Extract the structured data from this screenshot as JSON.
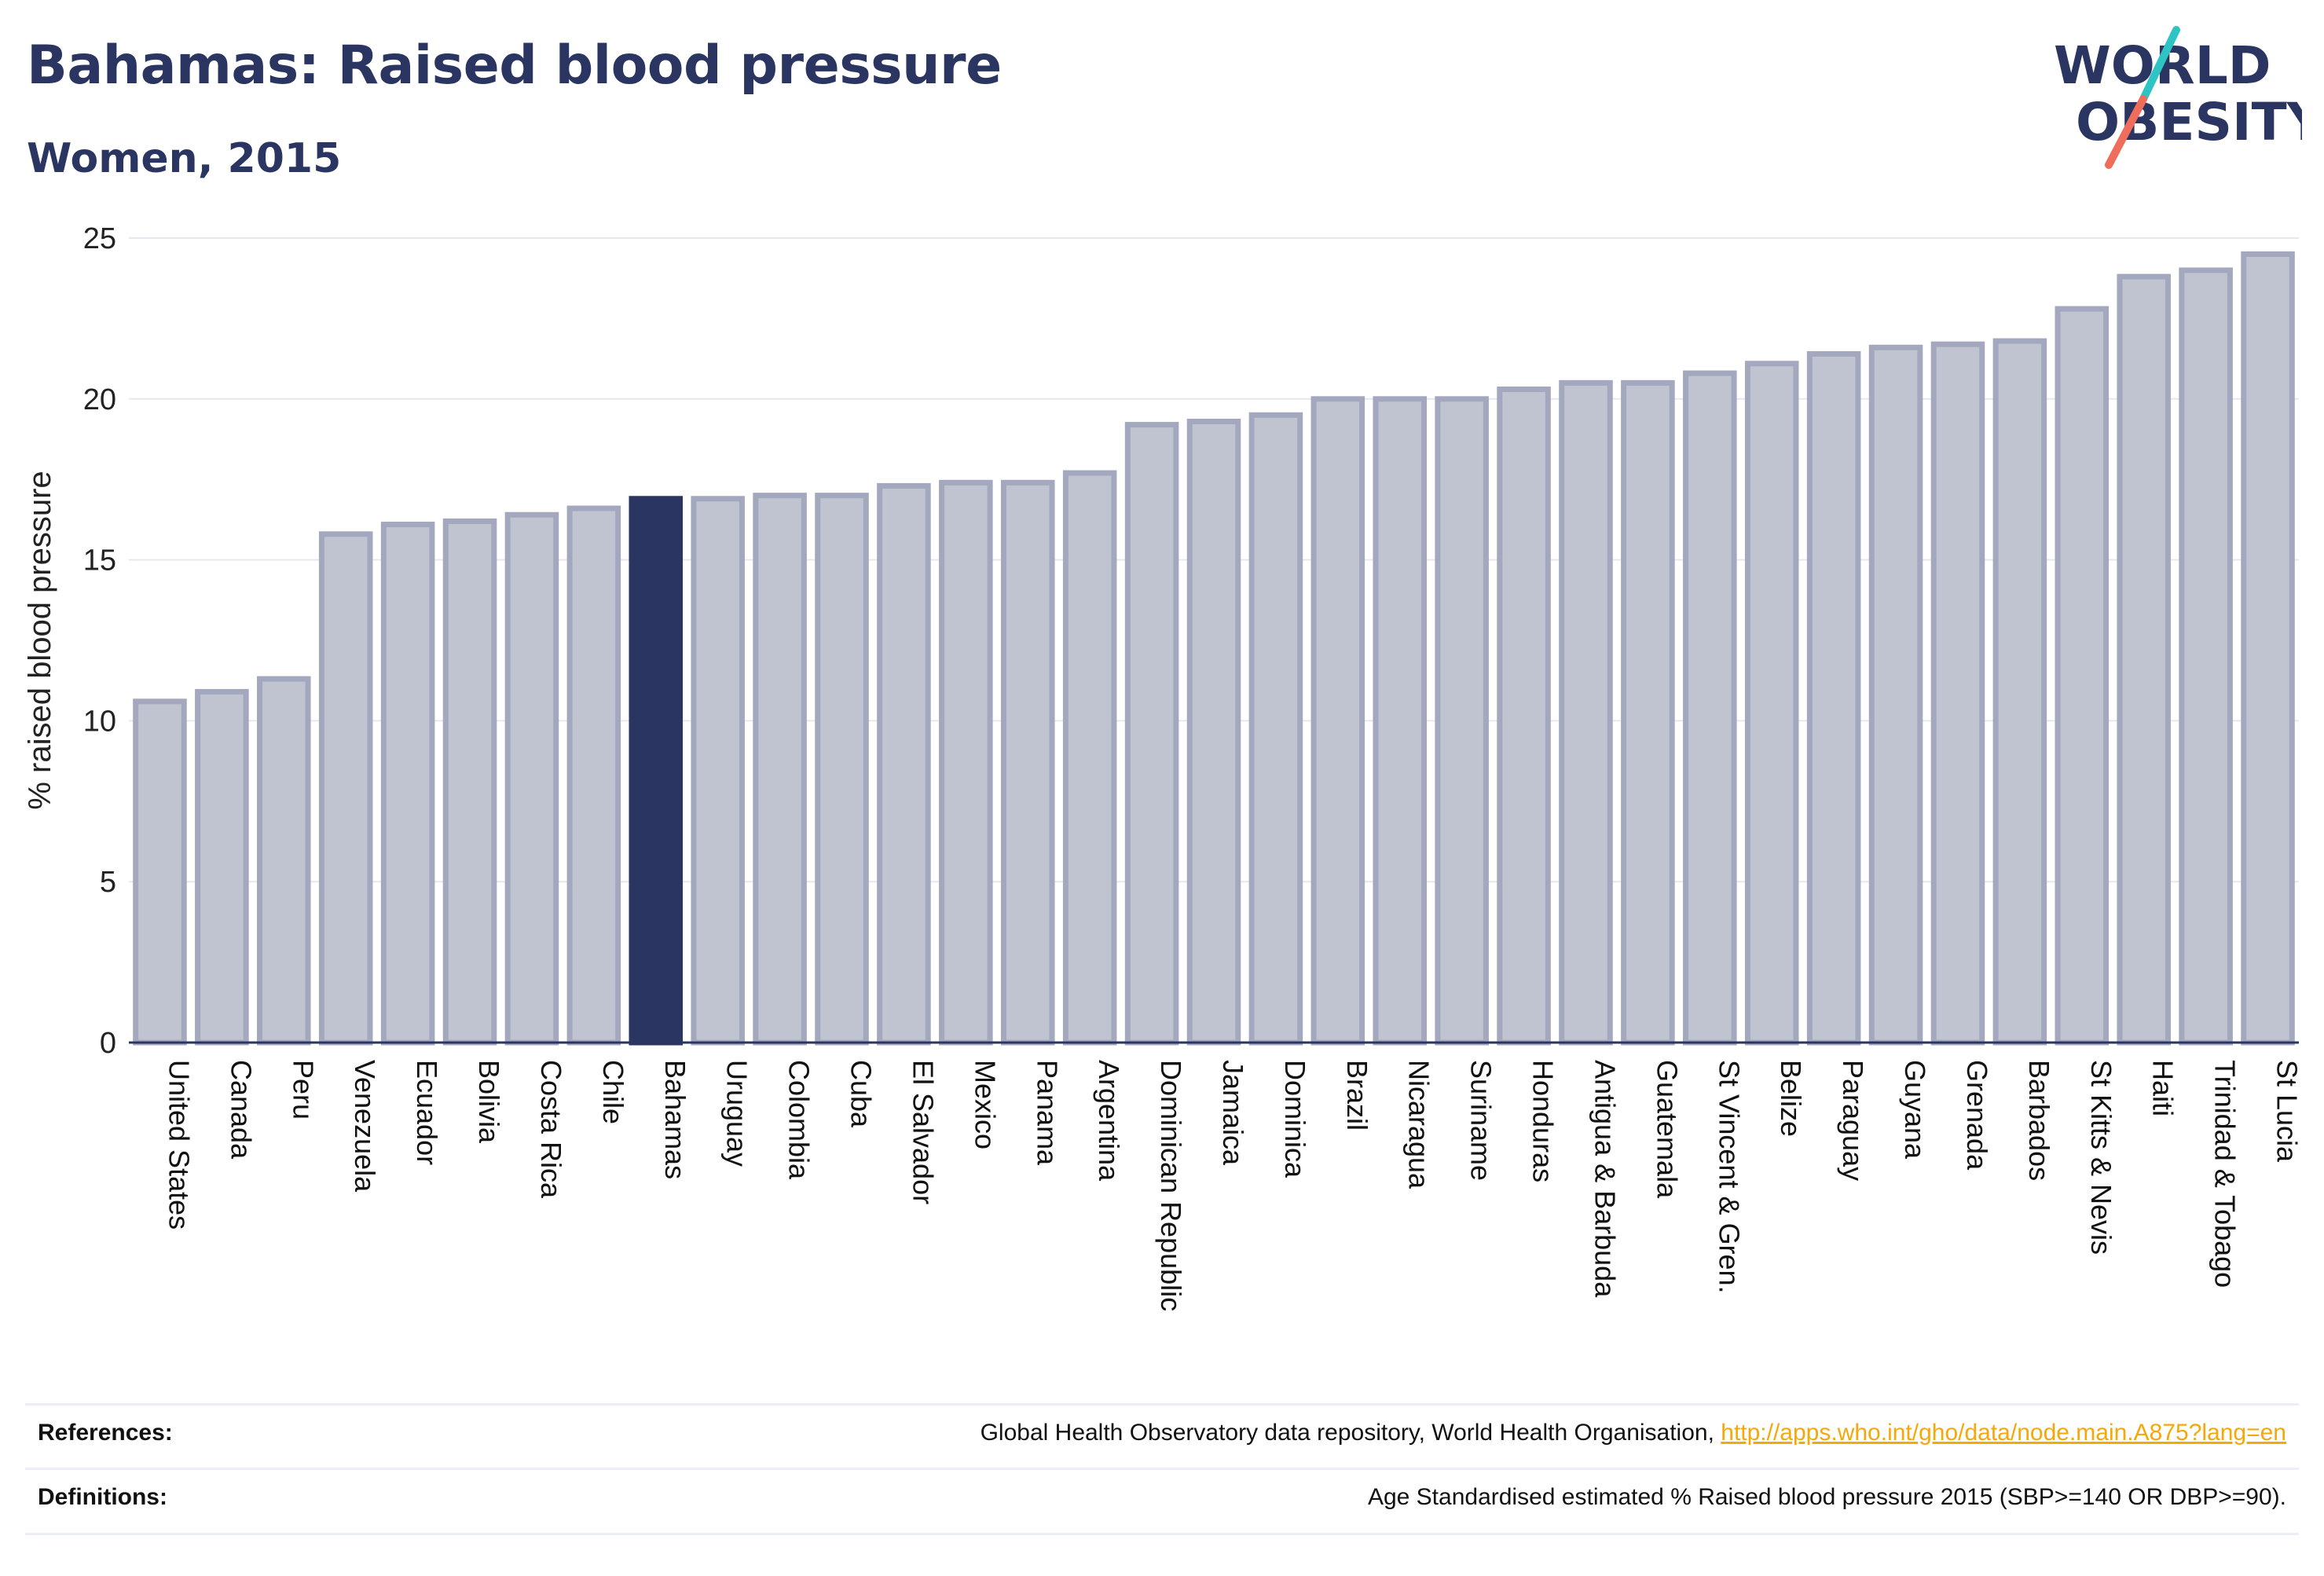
{
  "header": {
    "title": "Bahamas: Raised blood pressure",
    "subtitle": "Women, 2015"
  },
  "logo": {
    "line1": "WORLD",
    "line2": "OBESITY",
    "colors": [
      "#2b3561",
      "#2ec4c4",
      "#f06c5b"
    ]
  },
  "chart_data": {
    "type": "bar",
    "ylabel": "% raised blood pressure",
    "xlabel": "",
    "ylim": [
      0,
      25
    ],
    "yticks": [
      0,
      5,
      10,
      15,
      20,
      25
    ],
    "grid": true,
    "highlight": "Bahamas",
    "colors": {
      "bar": "#c0c3d0",
      "bar_edge": "#a3a8bf",
      "highlight": "#2b3561",
      "grid": "#e6e8ef"
    },
    "categories": [
      "United States",
      "Canada",
      "Peru",
      "Venezuela",
      "Ecuador",
      "Bolivia",
      "Costa Rica",
      "Chile",
      "Bahamas",
      "Uruguay",
      "Colombia",
      "Cuba",
      "El Salvador",
      "Mexico",
      "Panama",
      "Argentina",
      "Dominican Republic",
      "Jamaica",
      "Dominica",
      "Brazil",
      "Nicaragua",
      "Suriname",
      "Honduras",
      "Antigua & Barbuda",
      "Guatemala",
      "St Vincent & Gren.",
      "Belize",
      "Paraguay",
      "Guyana",
      "Grenada",
      "Barbados",
      "St Kitts & Nevis",
      "Haiti",
      "Trinidad & Tobago",
      "St Lucia"
    ],
    "values": [
      10.6,
      10.9,
      11.3,
      15.8,
      16.1,
      16.2,
      16.4,
      16.6,
      16.9,
      16.9,
      17.0,
      17.0,
      17.3,
      17.4,
      17.4,
      17.7,
      19.2,
      19.3,
      19.5,
      20.0,
      20.0,
      20.0,
      20.3,
      20.5,
      20.5,
      20.8,
      21.1,
      21.4,
      21.6,
      21.7,
      21.8,
      22.8,
      23.8,
      24.0,
      24.5
    ]
  },
  "footer": {
    "references_label": "References:",
    "references_text": "Global Health Observatory data repository, World Health Organisation, ",
    "references_link": "http://apps.who.int/gho/data/node.main.A875?lang=en",
    "definitions_label": "Definitions:",
    "definitions_text": "Age Standardised estimated % Raised blood pressure 2015 (SBP>=140 OR DBP>=90)."
  }
}
